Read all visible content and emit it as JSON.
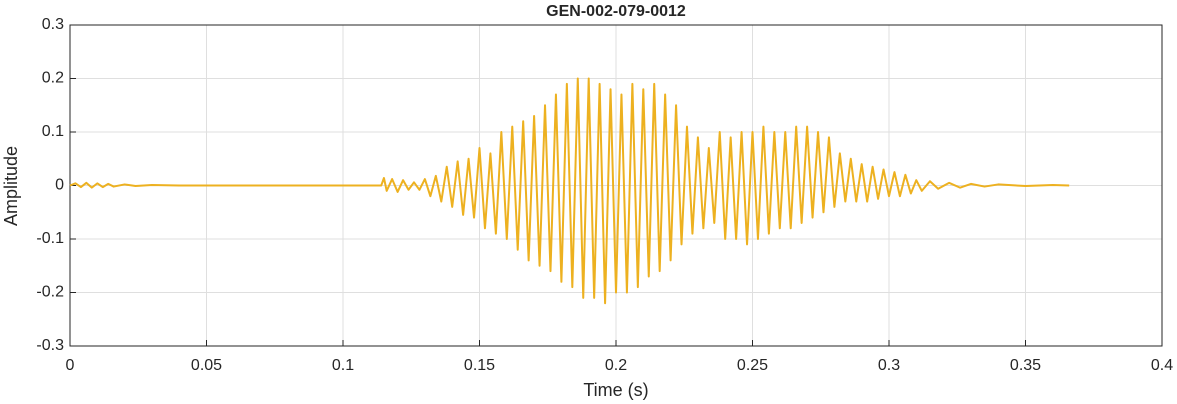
{
  "chart_data": {
    "type": "line",
    "title": "GEN-002-079-0012",
    "xlabel": "Time (s)",
    "ylabel": "Amplitude",
    "color": "#edb120",
    "grid": true,
    "xlim": [
      0,
      0.4
    ],
    "xticks": [
      0,
      0.05,
      0.1,
      0.15,
      0.2,
      0.25,
      0.3,
      0.35,
      0.4
    ],
    "ylim": [
      -0.3,
      0.3
    ],
    "yticks": [
      -0.3,
      -0.2,
      -0.1,
      0,
      0.1,
      0.2,
      0.3
    ],
    "x": [
      0,
      0.002,
      0.004,
      0.006,
      0.008,
      0.01,
      0.012,
      0.014,
      0.016,
      0.02,
      0.024,
      0.03,
      0.04,
      0.06,
      0.08,
      0.1,
      0.114,
      0.115,
      0.116,
      0.118,
      0.12,
      0.122,
      0.124,
      0.126,
      0.128,
      0.13,
      0.132,
      0.134,
      0.136,
      0.138,
      0.14,
      0.142,
      0.144,
      0.146,
      0.148,
      0.15,
      0.152,
      0.154,
      0.156,
      0.158,
      0.16,
      0.162,
      0.164,
      0.166,
      0.168,
      0.17,
      0.172,
      0.174,
      0.176,
      0.178,
      0.18,
      0.182,
      0.184,
      0.186,
      0.188,
      0.19,
      0.192,
      0.194,
      0.196,
      0.198,
      0.2,
      0.202,
      0.204,
      0.206,
      0.208,
      0.21,
      0.212,
      0.214,
      0.216,
      0.218,
      0.22,
      0.222,
      0.224,
      0.226,
      0.228,
      0.23,
      0.232,
      0.234,
      0.236,
      0.238,
      0.24,
      0.242,
      0.244,
      0.246,
      0.248,
      0.25,
      0.252,
      0.254,
      0.256,
      0.258,
      0.26,
      0.262,
      0.264,
      0.266,
      0.268,
      0.27,
      0.272,
      0.274,
      0.276,
      0.278,
      0.28,
      0.282,
      0.284,
      0.286,
      0.288,
      0.29,
      0.292,
      0.294,
      0.296,
      0.298,
      0.3,
      0.302,
      0.304,
      0.306,
      0.308,
      0.31,
      0.312,
      0.315,
      0.318,
      0.322,
      0.326,
      0.33,
      0.335,
      0.34,
      0.35,
      0.36,
      0.366
    ],
    "values": [
      0,
      0.004,
      -0.003,
      0.005,
      -0.004,
      0.004,
      -0.003,
      0.003,
      -0.002,
      0.002,
      -0.001,
      0.001,
      0,
      0,
      0,
      0,
      0,
      0.014,
      -0.01,
      0.012,
      -0.012,
      0.01,
      -0.008,
      0.006,
      -0.008,
      0.012,
      -0.02,
      0.018,
      -0.03,
      0.035,
      -0.04,
      0.045,
      -0.055,
      0.05,
      -0.06,
      0.07,
      -0.08,
      0.06,
      -0.09,
      0.1,
      -0.1,
      0.11,
      -0.12,
      0.12,
      -0.14,
      0.13,
      -0.15,
      0.15,
      -0.16,
      0.17,
      -0.18,
      0.19,
      -0.19,
      0.2,
      -0.21,
      0.2,
      -0.21,
      0.19,
      -0.22,
      0.18,
      -0.2,
      0.17,
      -0.2,
      0.19,
      -0.19,
      0.18,
      -0.17,
      0.19,
      -0.16,
      0.17,
      -0.14,
      0.15,
      -0.11,
      0.11,
      -0.09,
      0.09,
      -0.08,
      0.07,
      -0.07,
      0.1,
      -0.1,
      0.09,
      -0.1,
      0.1,
      -0.11,
      0.1,
      -0.1,
      0.11,
      -0.09,
      0.1,
      -0.08,
      0.1,
      -0.08,
      0.11,
      -0.07,
      0.11,
      -0.06,
      0.1,
      -0.05,
      0.09,
      -0.04,
      0.06,
      -0.03,
      0.05,
      -0.03,
      0.04,
      -0.03,
      0.035,
      -0.025,
      0.03,
      -0.02,
      0.025,
      -0.02,
      0.02,
      -0.015,
      0.01,
      -0.01,
      0.008,
      -0.006,
      0.005,
      -0.004,
      0.003,
      -0.002,
      0.002,
      -0.001,
      0.001,
      0
    ]
  }
}
